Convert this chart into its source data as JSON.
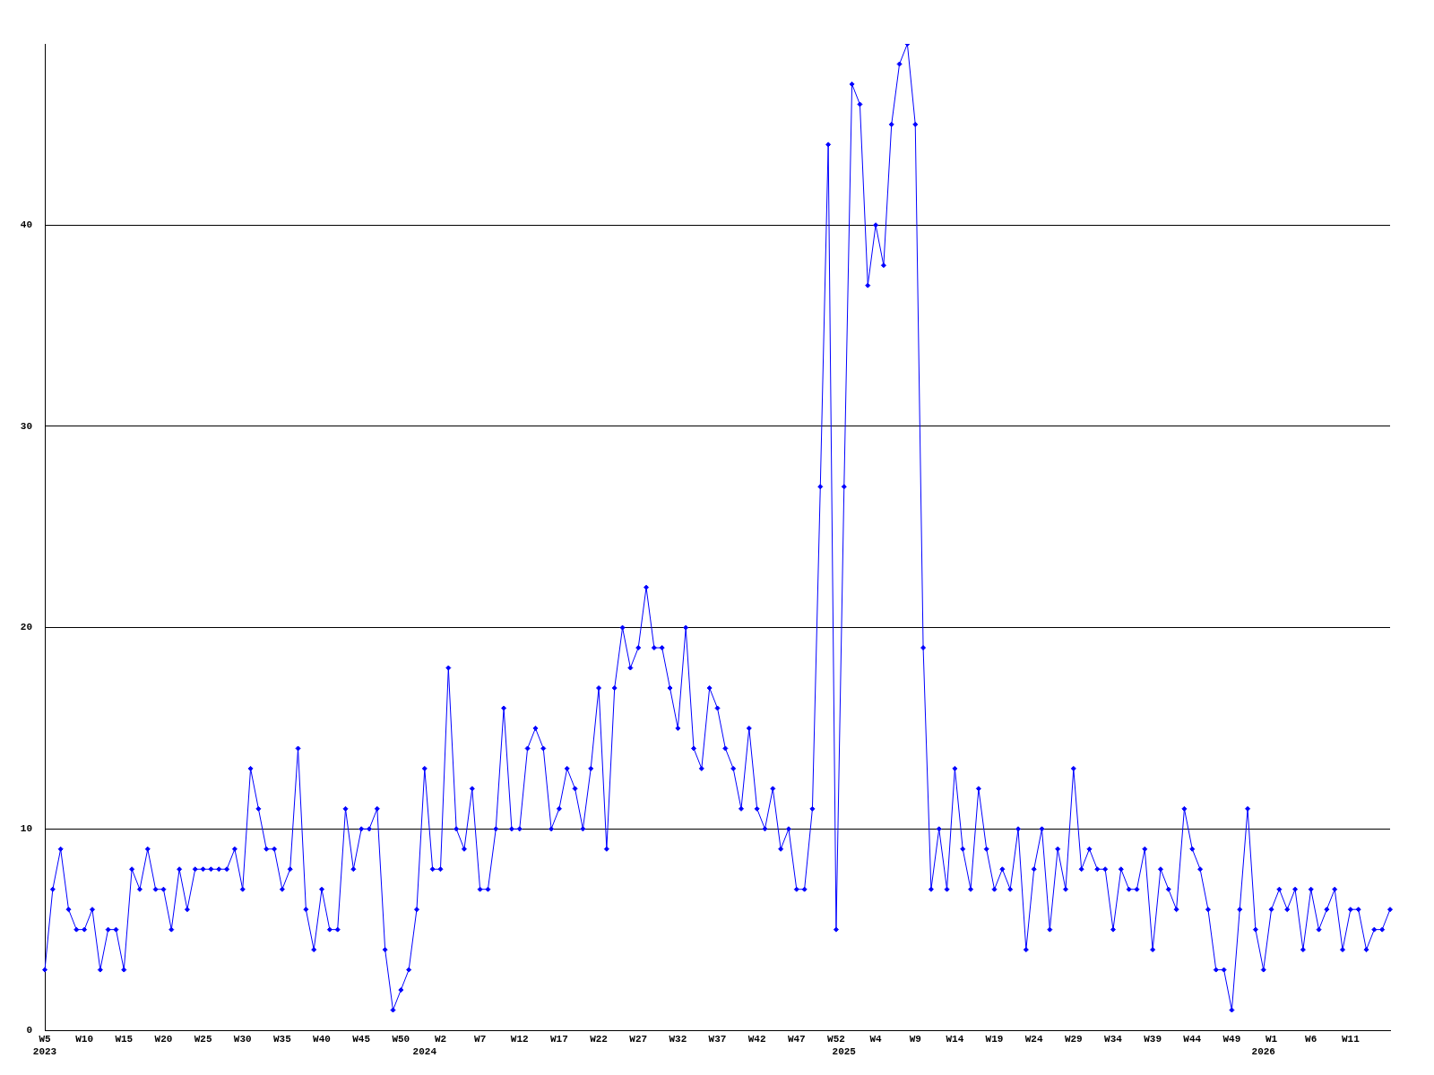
{
  "chart_data": {
    "type": "line",
    "categories": [
      "W5\n2023",
      null,
      null,
      null,
      null,
      "W10",
      null,
      null,
      null,
      null,
      "W15",
      null,
      null,
      null,
      null,
      "W20",
      null,
      null,
      null,
      null,
      "W25",
      null,
      null,
      null,
      null,
      "W30",
      null,
      null,
      null,
      null,
      "W35",
      null,
      null,
      null,
      null,
      "W40",
      null,
      null,
      null,
      null,
      "W45",
      null,
      null,
      null,
      null,
      "W50",
      null,
      null,
      "\n2024",
      null,
      "W2",
      null,
      null,
      null,
      null,
      "W7",
      null,
      null,
      null,
      null,
      "W12",
      null,
      null,
      null,
      null,
      "W17",
      null,
      null,
      null,
      null,
      "W22",
      null,
      null,
      null,
      null,
      "W27",
      null,
      null,
      null,
      null,
      "W32",
      null,
      null,
      null,
      null,
      "W37",
      null,
      null,
      null,
      null,
      "W42",
      null,
      null,
      null,
      null,
      "W47",
      null,
      null,
      null,
      null,
      "W52",
      "\n2025",
      null,
      null,
      null,
      "W4",
      null,
      null,
      null,
      null,
      "W9",
      null,
      null,
      null,
      null,
      "W14",
      null,
      null,
      null,
      null,
      "W19",
      null,
      null,
      null,
      null,
      "W24",
      null,
      null,
      null,
      null,
      "W29",
      null,
      null,
      null,
      null,
      "W34",
      null,
      null,
      null,
      null,
      "W39",
      null,
      null,
      null,
      null,
      "W44",
      null,
      null,
      null,
      null,
      "W49",
      null,
      null,
      null,
      "\n2026",
      "W1",
      null,
      null,
      null,
      null,
      "W6",
      null,
      null,
      null,
      null,
      "W11",
      null,
      null,
      null,
      null,
      null
    ],
    "values": [
      3,
      7,
      9,
      6,
      5,
      5,
      6,
      3,
      5,
      5,
      3,
      8,
      7,
      9,
      7,
      7,
      5,
      8,
      6,
      8,
      8,
      8,
      8,
      8,
      9,
      7,
      13,
      11,
      9,
      9,
      7,
      8,
      14,
      6,
      4,
      7,
      5,
      5,
      11,
      8,
      10,
      10,
      11,
      4,
      1,
      2,
      3,
      6,
      13,
      8,
      8,
      18,
      10,
      9,
      12,
      7,
      7,
      10,
      16,
      10,
      10,
      14,
      15,
      14,
      10,
      11,
      13,
      12,
      10,
      13,
      17,
      9,
      17,
      20,
      18,
      19,
      22,
      19,
      19,
      17,
      15,
      20,
      14,
      13,
      17,
      16,
      14,
      13,
      11,
      15,
      11,
      10,
      12,
      9,
      10,
      7,
      7,
      11,
      27,
      44,
      5,
      27,
      47,
      46,
      37,
      40,
      38,
      45,
      48,
      49,
      45,
      19,
      7,
      10,
      7,
      13,
      9,
      7,
      12,
      9,
      7,
      8,
      7,
      10,
      4,
      8,
      10,
      5,
      9,
      7,
      13,
      8,
      9,
      8,
      8,
      5,
      8,
      7,
      7,
      9,
      4,
      8,
      7,
      6,
      11,
      9,
      8,
      6,
      3,
      3,
      1,
      6,
      11,
      5,
      3,
      6,
      7,
      6,
      7,
      4,
      7,
      5,
      6,
      7,
      4,
      6,
      6,
      4,
      5,
      5,
      6
    ],
    "color": "#0000ff",
    "ylim": [
      0,
      49
    ],
    "yticks": [
      0,
      10,
      20,
      30,
      40
    ],
    "grid": "y",
    "marker": "diamond"
  }
}
